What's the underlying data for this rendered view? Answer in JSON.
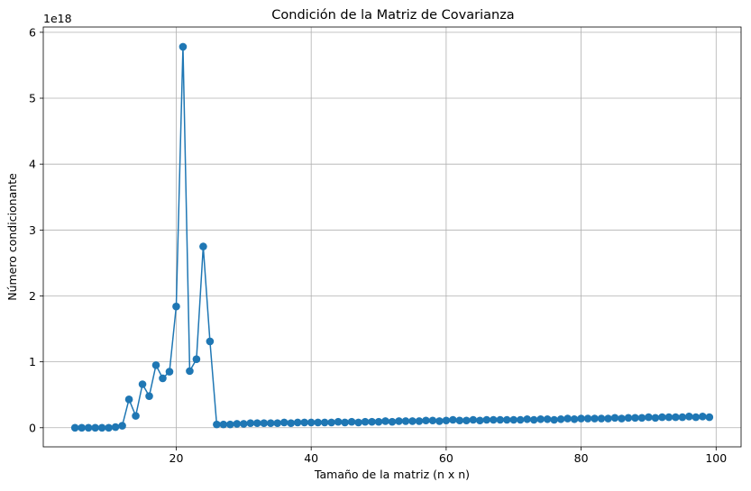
{
  "chart_data": {
    "type": "line",
    "title": "Condición de la Matriz de Covarianza",
    "xlabel": "Tamaño de la matriz (n x n)",
    "ylabel": "Número condicionante",
    "y_offset_label": "1e18",
    "xlim": [
      0.3,
      103.7
    ],
    "ylim": [
      -0.29,
      6.08
    ],
    "x_ticks": [
      20,
      40,
      60,
      80,
      100
    ],
    "y_ticks": [
      0,
      1,
      2,
      3,
      4,
      5,
      6
    ],
    "grid": true,
    "marker": "circle",
    "color": "#1f77b4",
    "series": [
      {
        "x": [
          5,
          6,
          7,
          8,
          9,
          10,
          11,
          12,
          13,
          14,
          15,
          16,
          17,
          18,
          19,
          20,
          21,
          22,
          23,
          24,
          25,
          26,
          27,
          28,
          29,
          30,
          31,
          32,
          33,
          34,
          35,
          36,
          37,
          38,
          39,
          40,
          41,
          42,
          43,
          44,
          45,
          46,
          47,
          48,
          49,
          50,
          51,
          52,
          53,
          54,
          55,
          56,
          57,
          58,
          59,
          60,
          61,
          62,
          63,
          64,
          65,
          66,
          67,
          68,
          69,
          70,
          71,
          72,
          73,
          74,
          75,
          76,
          77,
          78,
          79,
          80,
          81,
          82,
          83,
          84,
          85,
          86,
          87,
          88,
          89,
          90,
          91,
          92,
          93,
          94,
          95,
          96,
          97,
          98,
          99
        ],
        "y": [
          0.0,
          0.0,
          0.0,
          0.0,
          0.0,
          0.0,
          0.01,
          0.03,
          0.43,
          0.18,
          0.66,
          0.48,
          0.95,
          0.75,
          0.85,
          1.84,
          5.78,
          0.86,
          1.04,
          2.75,
          1.31,
          0.05,
          0.05,
          0.05,
          0.06,
          0.06,
          0.07,
          0.07,
          0.07,
          0.07,
          0.07,
          0.08,
          0.07,
          0.08,
          0.08,
          0.08,
          0.08,
          0.08,
          0.08,
          0.09,
          0.08,
          0.09,
          0.08,
          0.09,
          0.09,
          0.09,
          0.1,
          0.09,
          0.1,
          0.1,
          0.1,
          0.1,
          0.11,
          0.11,
          0.1,
          0.11,
          0.12,
          0.11,
          0.11,
          0.12,
          0.11,
          0.12,
          0.12,
          0.12,
          0.12,
          0.12,
          0.12,
          0.13,
          0.12,
          0.13,
          0.13,
          0.12,
          0.13,
          0.14,
          0.13,
          0.14,
          0.14,
          0.14,
          0.14,
          0.14,
          0.15,
          0.14,
          0.15,
          0.15,
          0.15,
          0.16,
          0.15,
          0.16,
          0.16,
          0.16,
          0.16,
          0.17,
          0.16,
          0.17,
          0.16
        ]
      }
    ]
  }
}
